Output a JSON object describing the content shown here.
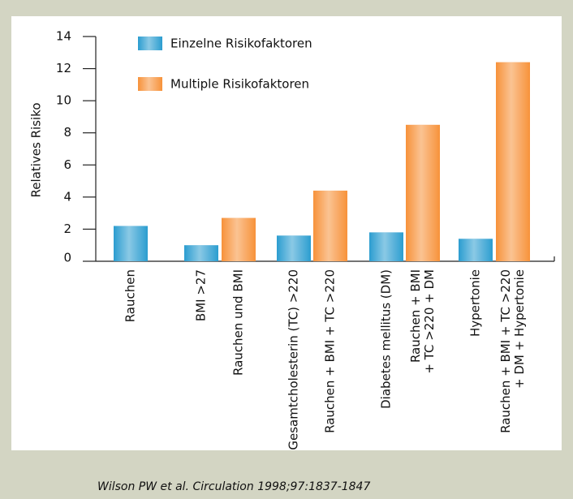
{
  "chart_data": {
    "type": "bar",
    "y_label": "Relatives Risiko",
    "categories": [
      [
        "Rauchen"
      ],
      [
        "BMI >27"
      ],
      [
        "Rauchen und BMI"
      ],
      [
        "Gesamtcholesterin (TC) >220"
      ],
      [
        "Rauchen + BMI + TC >220"
      ],
      [
        "Diabetes mellitus (DM)"
      ],
      [
        "Rauchen + BMI",
        "+ TC >220 + DM"
      ],
      [
        "Hypertonie"
      ],
      [
        "Rauchen + BMI + TC >220",
        "+ DM + Hypertonie"
      ]
    ],
    "series": [
      {
        "name": "Einzelne Risikofaktoren",
        "color": "#2b9dd0",
        "values": [
          2.2,
          1.0,
          null,
          1.6,
          null,
          1.8,
          null,
          1.4,
          null
        ]
      },
      {
        "name": "Multiple Risikofaktoren",
        "color": "#f7923a",
        "values": [
          null,
          null,
          2.7,
          null,
          4.4,
          null,
          8.5,
          null,
          12.4
        ]
      }
    ],
    "ylim": [
      0,
      14
    ],
    "yticks": [
      0,
      2,
      4,
      6,
      8,
      10,
      12,
      14
    ],
    "source": "Wilson PW et al. Circulation 1998;97:1837-1847"
  }
}
